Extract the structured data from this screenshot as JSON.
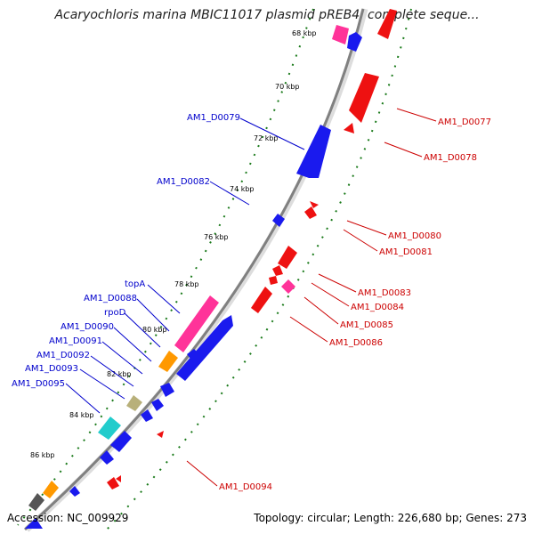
{
  "title": "Acaryochloris marina MBIC11017 plasmid pREB4, complete seque...",
  "footer": {
    "accession": "Accession: NC_009929",
    "topology": "Topology: circular; Length: 226,680 bp; Genes: 273"
  },
  "ticks": [
    "68 kbp",
    "70 kbp",
    "72 kbp",
    "74 kbp",
    "76 kbp",
    "78 kbp",
    "80 kbp",
    "82 kbp",
    "84 kbp",
    "86 kbp"
  ],
  "genes_left": [
    "AM1_D0079",
    "AM1_D0082",
    "topA",
    "AM1_D0088",
    "rpoD",
    "AM1_D0090",
    "AM1_D0091",
    "AM1_D0092",
    "AM1_D0093",
    "AM1_D0095"
  ],
  "genes_right": [
    "AM1_D0077",
    "AM1_D0078",
    "AM1_D0080",
    "AM1_D0081",
    "AM1_D0083",
    "AM1_D0084",
    "AM1_D0085",
    "AM1_D0086",
    "AM1_D0094"
  ],
  "colors": {
    "forward": "#0000ee",
    "reverse": "#ee0000",
    "rna": "#ff3399",
    "backbone": "#808080",
    "tick_dots": "#1a7a1a"
  }
}
